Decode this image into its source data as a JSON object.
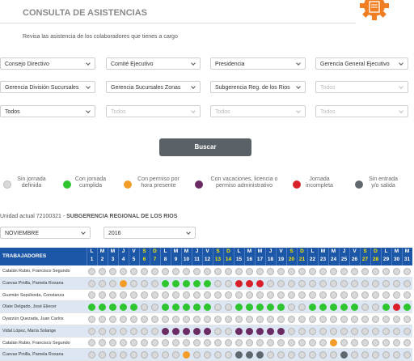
{
  "header": {
    "title": "CONSULTA DE ASISTENCIAS",
    "subtitle": "Revisa las asistencia de los colaboradores que tienes a cargo"
  },
  "filters": [
    [
      {
        "text": "Consejo Directivo",
        "placeholder": false
      },
      {
        "text": "Comité Ejecutivo",
        "placeholder": false
      },
      {
        "text": "Presidencia",
        "placeholder": false
      },
      {
        "text": "Gerencia General Ejecutivo",
        "placeholder": false
      }
    ],
    [
      {
        "text": "Gerencia División Sucursales",
        "placeholder": false
      },
      {
        "text": "Gerencia Sucursales Zonas",
        "placeholder": false
      },
      {
        "text": "Subgerencia Reg. de los Rios",
        "placeholder": false
      },
      {
        "text": "Todos",
        "placeholder": true
      }
    ],
    [
      {
        "text": "Todos",
        "placeholder": false
      },
      {
        "text": "Todos",
        "placeholder": true
      },
      {
        "text": "Todos",
        "placeholder": true
      },
      {
        "text": "Todos",
        "placeholder": true
      }
    ]
  ],
  "search_button": "Buscar",
  "legend": [
    {
      "lines": [
        "Sin jornada",
        "definida"
      ],
      "color": "#d9d9d9"
    },
    {
      "lines": [
        "Con jornada",
        "cumplida"
      ],
      "color": "#2ec52e"
    },
    {
      "lines": [
        "Con permiso por",
        "hora presente"
      ],
      "color": "#f39c28"
    },
    {
      "lines": [
        "Con vacaciones, licencia o",
        "permiso administrativo"
      ],
      "color": "#6a2a62"
    },
    {
      "lines": [
        "Jornada",
        "incompleta"
      ],
      "color": "#d9202a"
    },
    {
      "lines": [
        "Sin entrada",
        "y/o salida"
      ],
      "color": "#5f686e"
    }
  ],
  "unit": {
    "prefix": "Unidad actual 72100321 - ",
    "name": "SUBGERENCIA REGIONAL DE LOS RIOS"
  },
  "period": {
    "month": "NOVIEMBRE",
    "year": "2016"
  },
  "table": {
    "header": "TRABAJADORES",
    "weekdays": [
      "L",
      "M",
      "M",
      "J",
      "V",
      "S",
      "D",
      "L",
      "M",
      "M",
      "J",
      "V",
      "S",
      "D",
      "L",
      "M",
      "M",
      "J",
      "V",
      "S",
      "D",
      "L",
      "M",
      "M",
      "J",
      "V",
      "S",
      "D",
      "L",
      "M",
      "M"
    ],
    "days": [
      1,
      2,
      3,
      4,
      5,
      6,
      7,
      8,
      9,
      10,
      11,
      12,
      13,
      14,
      15,
      16,
      17,
      18,
      19,
      20,
      21,
      22,
      23,
      24,
      25,
      26,
      27,
      28,
      29,
      30,
      31
    ],
    "weekend_days": [
      6,
      7,
      13,
      14,
      20,
      21,
      27,
      28
    ],
    "weekend_color": "#f2e600",
    "rows": [
      {
        "name": "Catalán Rubio, Francisco Segundo",
        "status": [
          0,
          0,
          0,
          0,
          0,
          0,
          0,
          0,
          0,
          0,
          0,
          0,
          0,
          0,
          0,
          0,
          0,
          0,
          0,
          0,
          0,
          0,
          0,
          0,
          0,
          0,
          0,
          0,
          0,
          0,
          0
        ]
      },
      {
        "name": "Cuevas Pinilla, Pamela Roxana",
        "status": [
          0,
          0,
          0,
          2,
          0,
          0,
          0,
          1,
          1,
          1,
          1,
          1,
          0,
          0,
          4,
          4,
          4,
          0,
          0,
          0,
          0,
          0,
          0,
          0,
          0,
          0,
          0,
          0,
          0,
          0,
          0
        ]
      },
      {
        "name": "Guzmán Sepúlveda, Constanza",
        "status": [
          0,
          0,
          0,
          0,
          0,
          0,
          0,
          0,
          0,
          0,
          0,
          0,
          0,
          0,
          0,
          0,
          0,
          0,
          0,
          0,
          0,
          0,
          0,
          0,
          0,
          0,
          0,
          0,
          0,
          0,
          0
        ]
      },
      {
        "name": "Olate Delgado, José Eliecer",
        "status": [
          1,
          1,
          1,
          1,
          1,
          0,
          0,
          1,
          1,
          1,
          1,
          1,
          0,
          0,
          1,
          1,
          1,
          1,
          1,
          0,
          0,
          1,
          1,
          1,
          1,
          1,
          0,
          0,
          1,
          4,
          1
        ]
      },
      {
        "name": "Oyarzún Quezada, Juan Carlos",
        "status": [
          0,
          0,
          0,
          0,
          0,
          0,
          0,
          0,
          0,
          0,
          0,
          0,
          0,
          0,
          0,
          0,
          0,
          0,
          0,
          0,
          0,
          0,
          0,
          0,
          0,
          0,
          0,
          0,
          0,
          0,
          0
        ]
      },
      {
        "name": "Vidal López, María Solange",
        "status": [
          0,
          0,
          0,
          0,
          0,
          0,
          0,
          3,
          3,
          3,
          3,
          3,
          0,
          0,
          3,
          3,
          3,
          3,
          3,
          0,
          0,
          0,
          0,
          0,
          0,
          0,
          0,
          0,
          0,
          0,
          0
        ]
      },
      {
        "name": "Catalán Rubio, Francisco Segundo",
        "status": [
          0,
          0,
          0,
          0,
          0,
          0,
          0,
          0,
          0,
          0,
          0,
          0,
          0,
          0,
          0,
          0,
          0,
          0,
          0,
          0,
          0,
          0,
          0,
          2,
          0,
          0,
          0,
          0,
          0,
          0,
          0
        ]
      },
      {
        "name": "Cuevas Pinilla, Pamela Roxana",
        "status": [
          0,
          0,
          0,
          0,
          0,
          0,
          0,
          0,
          0,
          2,
          0,
          0,
          0,
          0,
          5,
          5,
          5,
          0,
          0,
          0,
          0,
          0,
          0,
          0,
          5,
          0,
          0,
          0,
          0,
          0,
          0
        ]
      }
    ]
  }
}
